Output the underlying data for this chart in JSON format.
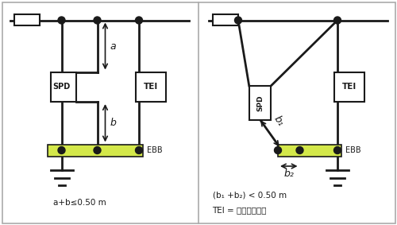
{
  "bg_color": "#ffffff",
  "border_color": "#aaaaaa",
  "line_color": "#1a1a1a",
  "ebb_color": "#d4e84a",
  "text_color": "#1a1a1a",
  "left_label": "a+b≤0.50 m",
  "right_label1": "(b₁ +b₂) < 0.50 m",
  "right_label2": "TEI = 终端设备接口"
}
